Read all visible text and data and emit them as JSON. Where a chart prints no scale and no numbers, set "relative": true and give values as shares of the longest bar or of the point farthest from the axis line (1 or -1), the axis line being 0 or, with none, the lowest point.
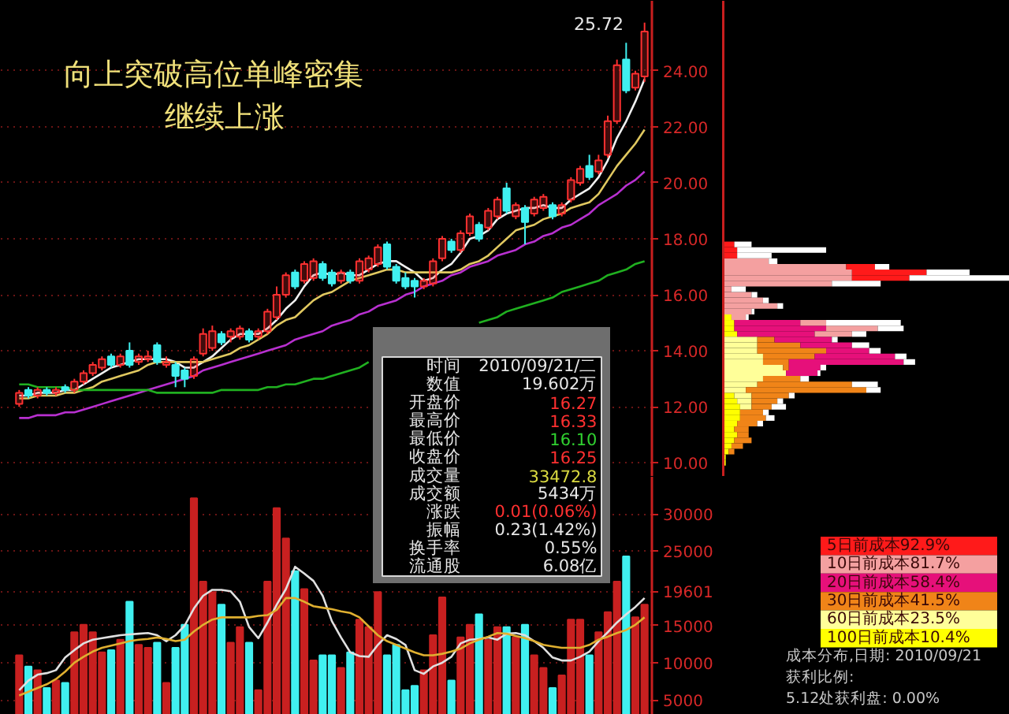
{
  "chart_data": [
    {
      "type": "candlestick",
      "title": "向上突破高位单峰密集",
      "subtitle": "继续上涨",
      "categories": [
        null,
        null,
        null,
        null,
        null,
        null,
        null,
        null,
        null,
        null,
        null,
        null,
        null,
        null,
        null,
        null,
        null,
        null,
        null,
        null,
        null,
        null,
        null,
        null,
        null,
        null,
        null,
        null,
        null,
        null,
        null,
        null,
        null,
        null,
        null,
        null,
        null,
        null,
        null,
        null,
        null,
        null,
        null,
        null,
        null,
        null,
        null,
        null,
        null,
        null,
        null,
        null,
        null,
        null,
        null,
        null,
        null,
        null,
        null,
        null,
        null,
        null,
        null,
        null,
        null,
        null,
        null,
        null,
        null
      ],
      "ohlc": [
        [
          12.1,
          12.6,
          12.0,
          12.5
        ],
        [
          12.6,
          12.7,
          12.3,
          12.4
        ],
        [
          12.4,
          12.7,
          12.3,
          12.6
        ],
        [
          12.6,
          12.7,
          12.4,
          12.5
        ],
        [
          12.5,
          12.7,
          12.4,
          12.6
        ],
        [
          12.7,
          12.8,
          12.5,
          12.6
        ],
        [
          12.6,
          13.0,
          12.5,
          12.9
        ],
        [
          12.9,
          13.3,
          12.8,
          13.2
        ],
        [
          13.2,
          13.6,
          13.1,
          13.5
        ],
        [
          13.4,
          13.8,
          13.3,
          13.7
        ],
        [
          13.8,
          13.9,
          13.4,
          13.5
        ],
        [
          13.5,
          13.9,
          13.4,
          13.8
        ],
        [
          14.0,
          14.3,
          13.4,
          13.5
        ],
        [
          13.6,
          13.9,
          13.5,
          13.8
        ],
        [
          13.7,
          14.0,
          13.6,
          13.8
        ],
        [
          14.2,
          14.3,
          13.5,
          13.6
        ],
        [
          13.5,
          13.8,
          13.4,
          13.6
        ],
        [
          13.5,
          13.6,
          12.7,
          13.1
        ],
        [
          13.3,
          13.4,
          12.7,
          13.0
        ],
        [
          13.1,
          13.8,
          13.0,
          13.7
        ],
        [
          13.9,
          14.8,
          13.8,
          14.6
        ],
        [
          14.1,
          14.9,
          14.0,
          14.7
        ],
        [
          14.6,
          14.7,
          14.2,
          14.3
        ],
        [
          14.5,
          14.8,
          14.3,
          14.7
        ],
        [
          14.5,
          14.9,
          14.4,
          14.8
        ],
        [
          14.7,
          14.8,
          14.3,
          14.4
        ],
        [
          14.5,
          14.8,
          14.4,
          14.7
        ],
        [
          14.7,
          15.5,
          14.6,
          15.4
        ],
        [
          15.2,
          16.3,
          15.1,
          16.0
        ],
        [
          16.0,
          16.8,
          15.9,
          16.7
        ],
        [
          16.8,
          16.9,
          16.2,
          16.3
        ],
        [
          16.5,
          17.2,
          16.4,
          17.1
        ],
        [
          16.6,
          17.3,
          16.5,
          17.2
        ],
        [
          17.1,
          17.2,
          16.5,
          16.6
        ],
        [
          16.8,
          16.9,
          16.3,
          16.4
        ],
        [
          16.5,
          16.9,
          16.4,
          16.8
        ],
        [
          16.8,
          16.9,
          16.4,
          16.5
        ],
        [
          16.5,
          17.3,
          16.4,
          17.2
        ],
        [
          16.9,
          17.4,
          16.8,
          17.3
        ],
        [
          17.1,
          17.8,
          17.0,
          17.7
        ],
        [
          17.8,
          17.9,
          16.9,
          17.0
        ],
        [
          17.0,
          17.1,
          16.4,
          16.5
        ],
        [
          16.6,
          16.8,
          16.2,
          16.3
        ],
        [
          16.5,
          16.6,
          15.9,
          16.3
        ],
        [
          16.3,
          16.6,
          16.2,
          16.5
        ],
        [
          16.4,
          17.3,
          16.3,
          17.2
        ],
        [
          17.3,
          18.1,
          17.2,
          18.0
        ],
        [
          17.9,
          18.0,
          17.5,
          17.6
        ],
        [
          17.6,
          18.3,
          17.5,
          18.2
        ],
        [
          18.2,
          18.9,
          18.1,
          18.8
        ],
        [
          18.5,
          18.6,
          17.9,
          18.0
        ],
        [
          18.4,
          19.1,
          18.3,
          19.0
        ],
        [
          18.8,
          19.5,
          18.7,
          19.4
        ],
        [
          19.8,
          20.0,
          18.9,
          19.0
        ],
        [
          18.8,
          19.3,
          18.7,
          19.2
        ],
        [
          19.1,
          19.2,
          17.8,
          18.6
        ],
        [
          18.9,
          19.5,
          18.8,
          19.4
        ],
        [
          19.1,
          19.6,
          19.0,
          19.5
        ],
        [
          19.2,
          19.3,
          18.7,
          18.8
        ],
        [
          18.9,
          19.3,
          18.8,
          19.2
        ],
        [
          19.4,
          20.2,
          19.3,
          20.1
        ],
        [
          20.0,
          20.6,
          19.9,
          20.5
        ],
        [
          20.6,
          21.0,
          20.1,
          20.2
        ],
        [
          20.4,
          21.0,
          20.3,
          20.8
        ],
        [
          21.0,
          22.4,
          20.9,
          22.2
        ],
        [
          22.2,
          24.4,
          22.1,
          24.2
        ],
        [
          24.4,
          25.0,
          23.2,
          23.3
        ],
        [
          23.4,
          24.0,
          23.3,
          23.9
        ],
        [
          23.8,
          25.72,
          23.6,
          25.4
        ]
      ],
      "colors": [
        "#ff3030",
        "#40f0f0",
        "#ff3030",
        "#40f0f0",
        "#ff3030",
        "#40f0f0",
        "#ff3030",
        "#ff3030",
        "#ff3030",
        "#ff3030",
        "#40f0f0",
        "#ff3030",
        "#40f0f0",
        "#ff3030",
        "#ff3030",
        "#40f0f0",
        "#ff3030",
        "#40f0f0",
        "#40f0f0",
        "#ff3030",
        "#ff3030",
        "#ff3030",
        "#40f0f0",
        "#ff3030",
        "#ff3030",
        "#40f0f0",
        "#ff3030",
        "#ff3030",
        "#ff3030",
        "#ff3030",
        "#40f0f0",
        "#ff3030",
        "#ff3030",
        "#40f0f0",
        "#40f0f0",
        "#ff3030",
        "#40f0f0",
        "#ff3030",
        "#ff3030",
        "#ff3030",
        "#40f0f0",
        "#40f0f0",
        "#40f0f0",
        "#40f0f0",
        "#ff3030",
        "#ff3030",
        "#ff3030",
        "#40f0f0",
        "#ff3030",
        "#ff3030",
        "#40f0f0",
        "#ff3030",
        "#ff3030",
        "#40f0f0",
        "#ff3030",
        "#40f0f0",
        "#ff3030",
        "#ff3030",
        "#40f0f0",
        "#ff3030",
        "#ff3030",
        "#ff3030",
        "#40f0f0",
        "#ff3030",
        "#ff3030",
        "#ff3030",
        "#40f0f0",
        "#ff3030",
        "#ff3030"
      ],
      "series": [
        {
          "type": "line",
          "color": "#f0f0f0",
          "values": [
            12.4,
            12.4,
            12.5,
            12.5,
            12.5,
            12.6,
            12.6,
            12.8,
            13.0,
            13.2,
            13.4,
            13.5,
            13.6,
            13.7,
            13.7,
            13.7,
            13.7,
            13.6,
            13.4,
            13.4,
            13.6,
            13.8,
            14.1,
            14.4,
            14.6,
            14.6,
            14.6,
            14.8,
            15.1,
            15.5,
            15.8,
            16.3,
            16.7,
            16.8,
            16.7,
            16.8,
            16.7,
            16.7,
            16.9,
            17.1,
            17.2,
            17.2,
            17.0,
            16.8,
            16.5,
            16.6,
            16.9,
            17.1,
            17.5,
            18.0,
            18.1,
            18.3,
            18.7,
            18.9,
            19.0,
            19.1,
            19.1,
            19.2,
            19.1,
            19.1,
            19.4,
            19.6,
            19.8,
            20.2,
            20.8,
            21.6,
            22.2,
            22.9,
            23.7
          ]
        },
        {
          "type": "line",
          "color": "#e0c860",
          "values": [
            12.3,
            12.3,
            12.4,
            12.4,
            12.4,
            12.5,
            12.5,
            12.6,
            12.7,
            12.9,
            13.0,
            13.1,
            13.2,
            13.3,
            13.5,
            13.6,
            13.6,
            13.6,
            13.6,
            13.6,
            13.6,
            13.7,
            13.8,
            13.9,
            14.1,
            14.2,
            14.4,
            14.6,
            14.9,
            15.1,
            15.2,
            15.5,
            15.8,
            16.0,
            16.1,
            16.3,
            16.5,
            16.6,
            16.7,
            16.8,
            16.9,
            16.9,
            16.8,
            16.8,
            16.8,
            16.8,
            16.8,
            16.8,
            16.9,
            17.1,
            17.2,
            17.4,
            17.7,
            18.0,
            18.3,
            18.4,
            18.5,
            18.7,
            18.8,
            18.9,
            19.1,
            19.2,
            19.3,
            19.6,
            20.1,
            20.6,
            21.0,
            21.4,
            21.9
          ]
        },
        {
          "type": "line",
          "color": "#b830d0",
          "values": [
            11.6,
            11.6,
            11.7,
            11.7,
            11.7,
            11.8,
            11.8,
            11.9,
            12.0,
            12.1,
            12.2,
            12.3,
            12.4,
            12.5,
            12.6,
            12.7,
            12.8,
            12.9,
            13.0,
            13.1,
            13.3,
            13.4,
            13.5,
            13.6,
            13.7,
            13.8,
            13.9,
            14.0,
            14.1,
            14.2,
            14.4,
            14.5,
            14.6,
            14.7,
            14.9,
            15.0,
            15.1,
            15.3,
            15.4,
            15.6,
            15.7,
            15.8,
            16.0,
            16.1,
            16.3,
            16.4,
            16.5,
            16.7,
            16.8,
            17.0,
            17.1,
            17.2,
            17.4,
            17.5,
            17.6,
            17.8,
            17.9,
            18.1,
            18.2,
            18.4,
            18.5,
            18.7,
            18.9,
            19.2,
            19.4,
            19.6,
            19.9,
            20.1,
            20.4
          ]
        },
        {
          "type": "line",
          "color": "#20b020",
          "values": [
            12.8,
            12.8,
            12.7,
            12.7,
            12.7,
            12.7,
            12.6,
            12.6,
            12.6,
            12.6,
            12.6,
            12.6,
            12.6,
            12.6,
            12.6,
            12.5,
            12.5,
            12.5,
            12.5,
            12.5,
            12.5,
            12.5,
            12.6,
            12.6,
            12.6,
            12.6,
            12.6,
            12.7,
            12.7,
            12.8,
            12.8,
            12.9,
            13.0,
            13.0,
            13.1,
            13.2,
            13.3,
            13.4,
            13.6,
            null,
            null,
            null,
            null,
            null,
            null,
            null,
            null,
            null,
            null,
            null,
            15.0,
            15.1,
            15.2,
            15.4,
            15.5,
            15.6,
            15.7,
            15.8,
            15.9,
            16.1,
            16.2,
            16.3,
            16.4,
            16.5,
            16.7,
            16.8,
            16.9,
            17.1,
            17.2
          ]
        }
      ],
      "ylim": [
        9.5,
        26.5
      ],
      "yticks": [
        {
          "value": 10,
          "label": "10.00"
        },
        {
          "value": 12,
          "label": "12.00"
        },
        {
          "value": 14,
          "label": "14.00"
        },
        {
          "value": 16,
          "label": "16.00"
        },
        {
          "value": 18,
          "label": "18.00"
        },
        {
          "value": 20,
          "label": "20.00"
        },
        {
          "value": 22,
          "label": "22.00"
        },
        {
          "value": 24,
          "label": "24.00"
        }
      ],
      "grid": "y",
      "tick_labels": "y",
      "annotations": [
        "25.72"
      ]
    },
    {
      "type": "bar",
      "orientation": "horizontal",
      "stacked": true,
      "relative": true,
      "x": [
        17.8,
        17.6,
        17.4,
        17.2,
        17.0,
        16.8,
        16.6,
        16.4,
        16.2,
        16.0,
        15.8,
        15.6,
        15.4,
        15.2,
        15.0,
        14.8,
        14.6,
        14.4,
        14.2,
        14.0,
        13.8,
        13.6,
        13.4,
        13.2,
        13.0,
        12.8,
        12.6,
        12.4,
        12.2,
        12.0,
        11.8,
        11.6,
        11.4,
        11.2,
        11.0,
        10.8,
        10.6,
        10.4,
        10.2,
        10.0
      ],
      "series": [
        {
          "name": "100日前成本10.4%",
          "color": "#ffff00",
          "values": [
            0,
            0,
            0,
            0,
            0,
            0,
            0,
            0,
            0,
            0,
            0,
            0,
            0,
            0.03,
            0.04,
            0.04,
            0.05,
            0,
            0,
            0,
            0,
            0,
            0,
            0,
            0,
            0,
            0,
            0.04,
            0.05,
            0.06,
            0.06,
            0.06,
            0.05,
            0.04,
            0.05,
            0.04,
            0.03,
            0.02,
            0.01,
            0.01
          ]
        },
        {
          "name": "60日前成本23.5%",
          "color": "#ffff99",
          "values": [
            0,
            0,
            0,
            0,
            0,
            0,
            0,
            0,
            0,
            0,
            0,
            0,
            0,
            0,
            0,
            0,
            0,
            0.12,
            0.12,
            0.12,
            0.14,
            0.14,
            0.21,
            0.22,
            0.14,
            0.12,
            0.08,
            0.06,
            0.05,
            0.04,
            0,
            0,
            0,
            0,
            0,
            0,
            0,
            0,
            0,
            0
          ]
        },
        {
          "name": "30日前成本41.5%",
          "color": "#f08418",
          "values": [
            0,
            0,
            0,
            0,
            0,
            0,
            0,
            0,
            0,
            0,
            0,
            0,
            0,
            0,
            0,
            0,
            0,
            0.06,
            0.15,
            0.24,
            0.18,
            0.09,
            0.02,
            0,
            0.13,
            0.33,
            0.42,
            0.13,
            0.09,
            0.07,
            0.08,
            0.09,
            0.07,
            0.05,
            0.04,
            0.06,
            0.04,
            0.02,
            0,
            0
          ]
        },
        {
          "name": "20日前成本58.4%",
          "color": "#e6107a",
          "values": [
            0,
            0,
            0,
            0,
            0,
            0,
            0,
            0,
            0,
            0,
            0,
            0,
            0,
            0,
            0.23,
            0.32,
            0.27,
            0.2,
            0.18,
            0.15,
            0.28,
            0.4,
            0.11,
            0.11,
            0,
            0,
            0,
            0,
            0,
            0,
            0,
            0,
            0,
            0,
            0,
            0,
            0,
            0,
            0,
            0
          ]
        },
        {
          "name": "10日前成本81.7%",
          "color": "#f4a0a0",
          "values": [
            0,
            0,
            0,
            0.16,
            0.43,
            0.45,
            0.45,
            0.38,
            0.03,
            0.1,
            0.14,
            0.19,
            0.1,
            0.05,
            0.09,
            0.18,
            0.13,
            0,
            0,
            0,
            0,
            0,
            0,
            0,
            0,
            0,
            0,
            0,
            0,
            0,
            0,
            0,
            0,
            0,
            0,
            0,
            0,
            0,
            0,
            0
          ]
        },
        {
          "name": "5日前成本92.9%",
          "color": "#ff1a1a",
          "values": [
            0.04,
            0.05,
            0.05,
            0,
            0.1,
            0.26,
            0.2,
            0,
            0,
            0,
            0,
            0,
            0,
            0,
            0,
            0,
            0,
            0,
            0,
            0,
            0,
            0,
            0,
            0,
            0,
            0,
            0,
            0,
            0,
            0,
            0,
            0,
            0,
            0,
            0,
            0,
            0,
            0,
            0,
            0
          ]
        },
        {
          "color": "#ffffff",
          "values": [
            0.06,
            0.31,
            0.12,
            0.03,
            0.05,
            0.15,
            0.35,
            0.17,
            0.05,
            0.02,
            0.02,
            0.02,
            0.01,
            0.01,
            0.26,
            0.09,
            0.05,
            0.02,
            0.06,
            0.04,
            0.04,
            0.04,
            0.02,
            0.01,
            0.03,
            0.09,
            0.05,
            0.02,
            0.02,
            0.05,
            0.02,
            0.03,
            0.02,
            0,
            0,
            0,
            0,
            0,
            0,
            0
          ]
        }
      ],
      "ylim": [
        9.5,
        26.5
      ],
      "tick_labels": false,
      "legend": "bottom right",
      "annotations": [
        "成本分布,日期: 2010/09/21",
        "获利比例:",
        "5.12处获利盘: 0.00%"
      ]
    },
    {
      "type": "other",
      "categories": [
        "时间",
        "数值",
        "开盘价",
        "最高价",
        "最低价",
        "收盘价",
        "成交量",
        "成交额",
        "涨跌",
        "振幅",
        "换手率",
        "流通股"
      ],
      "value_labels": [
        "2010/09/21/二",
        "19.602万",
        "16.27",
        "16.33",
        "16.10",
        "16.25",
        "33472.8",
        "5434万",
        "0.01(0.06%)",
        "0.23(1.42%)",
        "0.55%",
        "6.08亿"
      ],
      "colors": [
        "#e6e6e6",
        "#e6e6e6",
        "#ff3030",
        "#ff3030",
        "#30d030",
        "#ff3030",
        "#d8d840",
        "#e6e6e6",
        "#ff3030",
        "#e6e6e6",
        "#e6e6e6",
        "#e6e6e6"
      ]
    },
    {
      "type": "bar",
      "categories": [
        null,
        null,
        null,
        null,
        null,
        null,
        null,
        null,
        null,
        null,
        null,
        null,
        null,
        null,
        null,
        null,
        null,
        null,
        null,
        null,
        null,
        null,
        null,
        null,
        null,
        null,
        null,
        null,
        null,
        null,
        null,
        null,
        null,
        null,
        null,
        null,
        null,
        null,
        null,
        null,
        null,
        null,
        null,
        null,
        null,
        null,
        null,
        null,
        null,
        null,
        null,
        null,
        null,
        null,
        null,
        null,
        null,
        null,
        null,
        null,
        null,
        null,
        null,
        null,
        null,
        null,
        null,
        null,
        null
      ],
      "series": [
        {
          "type": "bar",
          "values": [
            11000,
            9500,
            9000,
            6600,
            7600,
            7300,
            14100,
            15100,
            14100,
            11400,
            11700,
            13100,
            18200,
            12400,
            12000,
            12700,
            7300,
            12000,
            15100,
            32100,
            20900,
            19500,
            17800,
            12700,
            14800,
            12700,
            6300,
            20900,
            30800,
            26700,
            22300,
            19900,
            10300,
            11000,
            11000,
            9300,
            11400,
            15800,
            14800,
            19500,
            11000,
            12400,
            6300,
            6900,
            9000,
            13700,
            18800,
            7600,
            13400,
            15100,
            16500,
            13100,
            14800,
            14800,
            13400,
            15100,
            11000,
            9300,
            6600,
            8300,
            15800,
            15800,
            11000,
            14100,
            16800,
            20900,
            24300,
            16100,
            17800
          ],
          "colors": [
            "#c82020",
            "#40f0f0",
            "#c82020",
            "#40f0f0",
            "#c82020",
            "#40f0f0",
            "#c82020",
            "#c82020",
            "#c82020",
            "#c82020",
            "#40f0f0",
            "#c82020",
            "#40f0f0",
            "#c82020",
            "#c82020",
            "#40f0f0",
            "#c82020",
            "#40f0f0",
            "#40f0f0",
            "#c82020",
            "#c82020",
            "#c82020",
            "#40f0f0",
            "#c82020",
            "#c82020",
            "#40f0f0",
            "#c82020",
            "#c82020",
            "#c82020",
            "#c82020",
            "#40f0f0",
            "#c82020",
            "#c82020",
            "#40f0f0",
            "#40f0f0",
            "#c82020",
            "#40f0f0",
            "#c82020",
            "#c82020",
            "#c82020",
            "#40f0f0",
            "#40f0f0",
            "#40f0f0",
            "#40f0f0",
            "#c82020",
            "#c82020",
            "#c82020",
            "#40f0f0",
            "#c82020",
            "#c82020",
            "#40f0f0",
            "#c82020",
            "#c82020",
            "#40f0f0",
            "#c82020",
            "#40f0f0",
            "#c82020",
            "#c82020",
            "#40f0f0",
            "#c82020",
            "#c82020",
            "#c82020",
            "#40f0f0",
            "#c82020",
            "#c82020",
            "#c82020",
            "#40f0f0",
            "#c82020",
            "#c82020"
          ]
        },
        {
          "type": "line",
          "color": "#e0e0e0",
          "values": [
            6300,
            7600,
            8400,
            8600,
            9000,
            10700,
            11700,
            12600,
            13100,
            13300,
            13500,
            13700,
            13800,
            13900,
            14000,
            13700,
            12900,
            13700,
            15000,
            17300,
            19000,
            19800,
            19800,
            19600,
            18200,
            14800,
            13300,
            15400,
            17800,
            19900,
            22900,
            22000,
            21000,
            19000,
            15600,
            13400,
            11400,
            10900,
            10800,
            12400,
            13700,
            13200,
            12400,
            9000,
            8500,
            9500,
            10000,
            10800,
            12600,
            13100,
            13200,
            13400,
            13100,
            13900,
            14000,
            13700,
            12900,
            12000,
            10700,
            10300,
            10300,
            10800,
            11500,
            12900,
            14100,
            15400,
            16500,
            17500,
            18700
          ]
        },
        {
          "type": "line",
          "color": "#e0b030",
          "values": [
            5600,
            6100,
            6600,
            7100,
            7800,
            8800,
            10000,
            10800,
            11500,
            12000,
            12300,
            12600,
            12900,
            13100,
            13200,
            13400,
            13200,
            12900,
            13100,
            14200,
            15100,
            15800,
            16100,
            16100,
            16100,
            16100,
            16300,
            16400,
            17100,
            18700,
            18700,
            18200,
            17600,
            17400,
            17200,
            16900,
            16700,
            16100,
            14900,
            13700,
            12900,
            12400,
            11900,
            11400,
            11000,
            11000,
            11200,
            11500,
            11900,
            12600,
            13100,
            13500,
            14000,
            13900,
            13600,
            13300,
            12900,
            12400,
            12200,
            12000,
            12000,
            12000,
            12400,
            13100,
            13500,
            14000,
            14400,
            15100,
            16100
          ]
        }
      ],
      "ylim": [
        3000,
        35000
      ],
      "yticks": [
        5000,
        10000,
        15000,
        {
          "value": 19601,
          "label": "19601"
        },
        25000,
        30000
      ],
      "grid": "y",
      "tick_labels": "y"
    }
  ]
}
